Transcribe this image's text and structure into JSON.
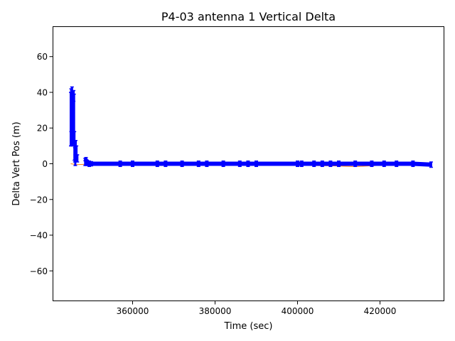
{
  "chart_data": {
    "type": "line",
    "title": "P4-03 antenna 1 Vertical Delta",
    "xlabel": "Time (sec)",
    "ylabel": "Delta Vert Pos (m)",
    "xlim": [
      340600,
      435600
    ],
    "ylim": [
      -77,
      77
    ],
    "xticks": [
      360000,
      380000,
      400000,
      420000
    ],
    "xtick_labels": [
      "360000",
      "380000",
      "400000",
      "420000"
    ],
    "yticks": [
      -60,
      -40,
      -20,
      0,
      20,
      40,
      60
    ],
    "ytick_labels": [
      "−60",
      "−40",
      "−20",
      "0",
      "20",
      "40",
      "60"
    ],
    "grid": false,
    "legend": "none",
    "series": [
      {
        "style": "line",
        "color": "#ff7f0e",
        "x": [
          345000,
          346500,
          348500,
          350000,
          360000,
          380000,
          400000,
          409000,
          414000,
          420000,
          432400
        ],
        "y": [
          0,
          -0.5,
          -0.3,
          -0.8,
          -0.9,
          -0.9,
          -0.9,
          -1.2,
          -1.6,
          -0.9,
          -0.8
        ]
      },
      {
        "style": "error-bars",
        "color": "#0000ff",
        "x": [
          345000,
          345100,
          345200,
          345300,
          345400,
          345500,
          345600,
          345700,
          345800,
          345900,
          346000,
          346100,
          346200,
          346400,
          346600,
          348500,
          348700,
          349000,
          349500,
          350000,
          357000,
          360000,
          366000,
          368000,
          372000,
          376000,
          378000,
          382000,
          386000,
          388000,
          390000,
          400000,
          401000,
          404000,
          406000,
          408000,
          410000,
          414000,
          418000,
          421000,
          424000,
          428000,
          432400
        ],
        "y": [
          25,
          30,
          20,
          35,
          15,
          28,
          22,
          38,
          25,
          10,
          5,
          2,
          8,
          6,
          3,
          1,
          2,
          0.5,
          0,
          0,
          0,
          0,
          0,
          0,
          0,
          0,
          0,
          0,
          0,
          0,
          0,
          0,
          0,
          0,
          0,
          0,
          0,
          0,
          0,
          0,
          0,
          0,
          -0.5
        ],
        "err": [
          15,
          12,
          10,
          8,
          5,
          12,
          10,
          3,
          14,
          8,
          4,
          3,
          5,
          4,
          2,
          2,
          1.5,
          1.5,
          1.5,
          1.2,
          1.5,
          1.5,
          1.5,
          1.5,
          1.5,
          1.5,
          1.5,
          1.5,
          1.5,
          1.5,
          1.5,
          1.5,
          1.5,
          1.5,
          1.5,
          1.5,
          1.5,
          1.5,
          1.5,
          1.5,
          1.5,
          1.5,
          1.5
        ]
      }
    ]
  }
}
